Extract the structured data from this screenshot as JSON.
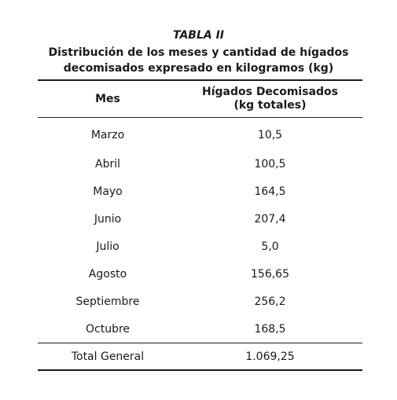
{
  "table": {
    "label": "TABLA II",
    "title_line1": "Distribución de los meses y cantidad de hígados",
    "title_line2": "decomisados expresado en kilogramos (kg)",
    "headers": {
      "month": "Mes",
      "value_line1": "Hígados Decomisados",
      "value_line2": "(kg totales)"
    },
    "rows": [
      {
        "month": "Marzo",
        "value": "10,5"
      },
      {
        "month": "Abril",
        "value": "100,5"
      },
      {
        "month": "Mayo",
        "value": "164,5"
      },
      {
        "month": "Junio",
        "value": "207,4"
      },
      {
        "month": "Julio",
        "value": "5,0"
      },
      {
        "month": "Agosto",
        "value": "156,65"
      },
      {
        "month": "Septiembre",
        "value": "256,2"
      },
      {
        "month": "Octubre",
        "value": "168,5"
      }
    ],
    "total": {
      "label": "Total General",
      "value": "1.069,25"
    }
  }
}
